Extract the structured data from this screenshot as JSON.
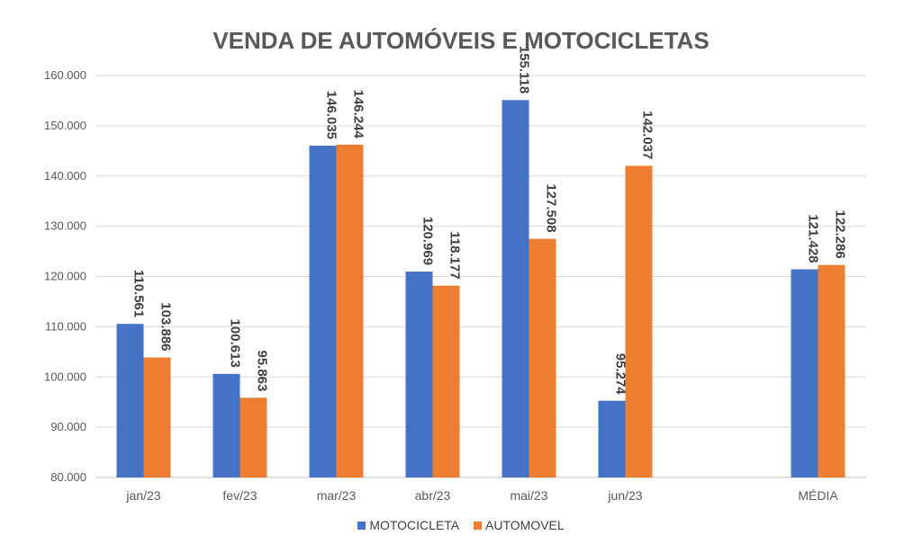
{
  "chart_data": {
    "type": "bar",
    "title": "VENDA DE AUTOMÓVEIS E MOTOCICLETAS",
    "categories": [
      "jan/23",
      "fev/23",
      "mar/23",
      "abr/23",
      "mai/23",
      "jun/23",
      "",
      "MÉDIA"
    ],
    "series": [
      {
        "name": "MOTOCICLETA",
        "color": "#4472C4",
        "values": [
          110561,
          100613,
          146035,
          120969,
          155118,
          95274,
          null,
          121428
        ],
        "labels": [
          "110.561",
          "100.613",
          "146.035",
          "120.969",
          "155.118",
          "95.274",
          "",
          "121.428"
        ]
      },
      {
        "name": "AUTOMOVEL",
        "color": "#ED7D31",
        "values": [
          103886,
          95863,
          146244,
          118177,
          127508,
          142037,
          null,
          122286
        ],
        "labels": [
          "103.886",
          "95.863",
          "146.244",
          "118.177",
          "127.508",
          "142.037",
          "",
          "122.286"
        ]
      }
    ],
    "ylim": [
      80000,
      160000
    ],
    "yticks": [
      80000,
      90000,
      100000,
      110000,
      120000,
      130000,
      140000,
      150000,
      160000
    ],
    "ytick_labels": [
      "80.000",
      "90.000",
      "100.000",
      "110.000",
      "120.000",
      "130.000",
      "140.000",
      "150.000",
      "160.000"
    ],
    "grid": true,
    "legend_position": "bottom"
  }
}
